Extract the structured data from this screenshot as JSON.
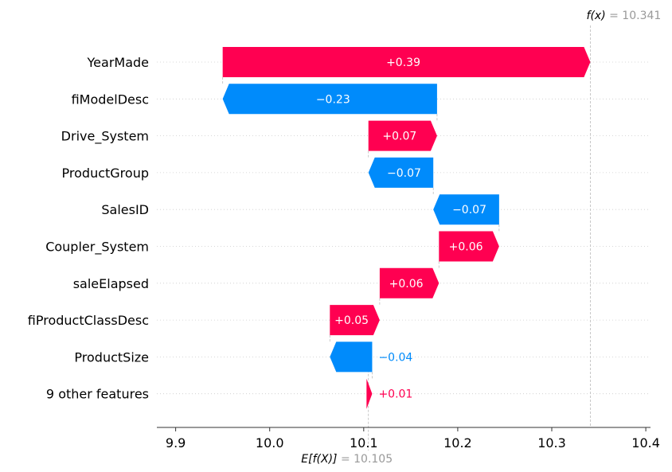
{
  "chart_data": {
    "type": "waterfall",
    "base_value": 10.105,
    "output_value": 10.341,
    "base_label_prefix": "E[f(X)]",
    "base_label_text": "= 10.105",
    "output_label_prefix": "f(x)",
    "output_label_text": "= 10.341",
    "xlim": [
      9.88,
      10.405
    ],
    "xticks": [
      9.9,
      10.0,
      10.1,
      10.2,
      10.3,
      10.4
    ],
    "xtick_labels": [
      "9.9",
      "10.0",
      "10.1",
      "10.2",
      "10.3",
      "10.4"
    ],
    "grid": "dotted horizontal row lines",
    "colors": {
      "positive": "#ff0051",
      "negative": "#008bfb",
      "positive_text_outside": "#ff0051"
    },
    "features": [
      {
        "name": "YearMade",
        "start": 9.95,
        "end": 10.341,
        "label": "+0.39"
      },
      {
        "name": "fiModelDesc",
        "start": 10.178,
        "end": 9.95,
        "label": "−0.23"
      },
      {
        "name": "Drive_System",
        "start": 10.105,
        "end": 10.178,
        "label": "+0.07"
      },
      {
        "name": "ProductGroup",
        "start": 10.174,
        "end": 10.105,
        "label": "−0.07"
      },
      {
        "name": "SalesID",
        "start": 10.244,
        "end": 10.174,
        "label": "−0.07"
      },
      {
        "name": "Coupler_System",
        "start": 10.18,
        "end": 10.244,
        "label": "+0.06"
      },
      {
        "name": "saleElapsed",
        "start": 10.117,
        "end": 10.18,
        "label": "+0.06"
      },
      {
        "name": "fiProductClassDesc",
        "start": 10.064,
        "end": 10.117,
        "label": "+0.05"
      },
      {
        "name": "ProductSize",
        "start": 10.109,
        "end": 10.064,
        "label": "−0.04"
      },
      {
        "name": "9 other features",
        "start": 10.103,
        "end": 10.109,
        "label": "+0.01"
      }
    ]
  }
}
